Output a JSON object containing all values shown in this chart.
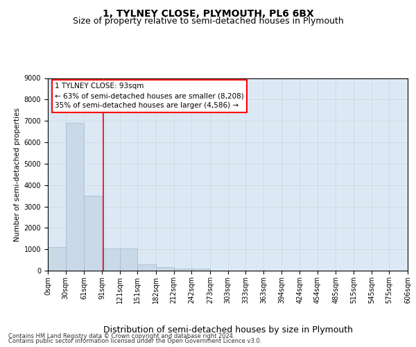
{
  "title1": "1, TYLNEY CLOSE, PLYMOUTH, PL6 6BX",
  "title2": "Size of property relative to semi-detached houses in Plymouth",
  "xlabel": "Distribution of semi-detached houses by size in Plymouth",
  "ylabel": "Number of semi-detached properties",
  "footer1": "Contains HM Land Registry data © Crown copyright and database right 2024.",
  "footer2": "Contains public sector information licensed under the Open Government Licence v3.0.",
  "annotation_title": "1 TYLNEY CLOSE: 93sqm",
  "annotation_line1": "← 63% of semi-detached houses are smaller (8,208)",
  "annotation_line2": "35% of semi-detached houses are larger (4,586) →",
  "property_value": 93,
  "bar_bins": [
    0,
    30,
    61,
    91,
    121,
    151,
    182,
    212,
    242,
    273,
    303,
    333,
    363,
    394,
    424,
    454,
    485,
    515,
    545,
    575,
    606
  ],
  "bar_heights": [
    1100,
    6900,
    3500,
    1050,
    1050,
    300,
    150,
    100,
    100,
    0,
    0,
    0,
    0,
    0,
    0,
    0,
    0,
    0,
    0,
    0
  ],
  "bar_color": "#c9d9e8",
  "bar_edgecolor": "#a0b8cc",
  "vline_x": 93,
  "vline_color": "red",
  "ylim": [
    0,
    9000
  ],
  "yticks": [
    0,
    1000,
    2000,
    3000,
    4000,
    5000,
    6000,
    7000,
    8000,
    9000
  ],
  "grid_color": "#d0d8e0",
  "background_color": "#dce9f5",
  "annotation_box_facecolor": "white",
  "annotation_box_edgecolor": "red",
  "title1_fontsize": 10,
  "title2_fontsize": 9,
  "xlabel_fontsize": 9,
  "ylabel_fontsize": 7.5,
  "tick_fontsize": 7,
  "annotation_fontsize": 7.5,
  "footer_fontsize": 6
}
